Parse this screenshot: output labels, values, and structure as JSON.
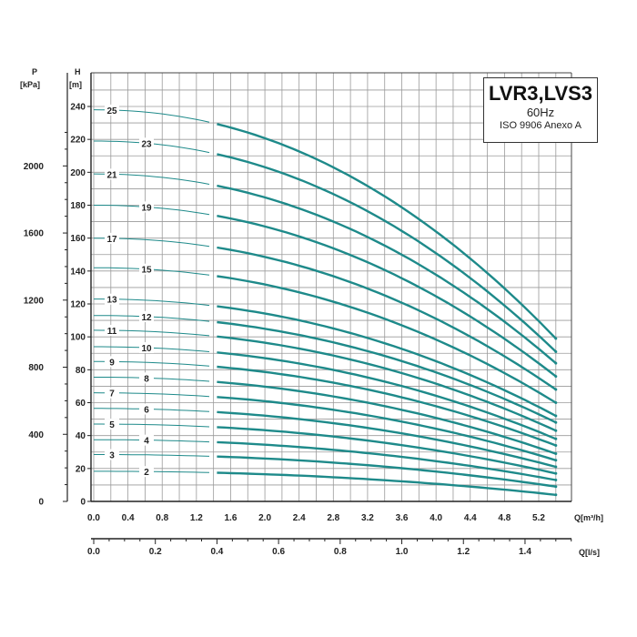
{
  "chart_data": {
    "type": "line",
    "title": "LVR3,LVS3",
    "subtitle": "60Hz",
    "standard": "ISO 9906 Anexo A",
    "xlabel": "Q[m³/h]",
    "x2label": "Q[l/s]",
    "ylabel": "H",
    "ylabel_unit": "[m]",
    "y2label": "P",
    "y2label_unit": "[kPa]",
    "xlim": [
      0,
      5.6
    ],
    "ylim": [
      0,
      250
    ],
    "x_ticks": [
      "0.0",
      "0.4",
      "0.8",
      "1.2",
      "1.6",
      "2.0",
      "2.4",
      "2.8",
      "3.2",
      "3.6",
      "4.0",
      "4.4",
      "4.8",
      "5.2"
    ],
    "x2_ticks": [
      "0.0",
      "0.2",
      "0.4",
      "0.6",
      "0.8",
      "1.0",
      "1.2",
      "1.4"
    ],
    "y_ticks": [
      "0",
      "20",
      "40",
      "60",
      "80",
      "100",
      "120",
      "140",
      "160",
      "180",
      "200",
      "220",
      "240"
    ],
    "y2_ticks": [
      "0",
      "400",
      "800",
      "1200",
      "1600",
      "2000"
    ],
    "grid": true,
    "series": [
      {
        "name": "2",
        "shutoff_head": 18.3,
        "end_head": 4
      },
      {
        "name": "3",
        "shutoff_head": 28.5,
        "end_head": 9
      },
      {
        "name": "4",
        "shutoff_head": 37.5,
        "end_head": 13
      },
      {
        "name": "5",
        "shutoff_head": 47,
        "end_head": 17
      },
      {
        "name": "6",
        "shutoff_head": 56.5,
        "end_head": 21
      },
      {
        "name": "7",
        "shutoff_head": 66,
        "end_head": 25
      },
      {
        "name": "8",
        "shutoff_head": 75.5,
        "end_head": 29
      },
      {
        "name": "9",
        "shutoff_head": 85,
        "end_head": 34
      },
      {
        "name": "10",
        "shutoff_head": 94,
        "end_head": 38
      },
      {
        "name": "11",
        "shutoff_head": 104,
        "end_head": 43
      },
      {
        "name": "12",
        "shutoff_head": 113,
        "end_head": 48
      },
      {
        "name": "13",
        "shutoff_head": 123,
        "end_head": 52
      },
      {
        "name": "15",
        "shutoff_head": 142,
        "end_head": 60
      },
      {
        "name": "17",
        "shutoff_head": 160,
        "end_head": 68
      },
      {
        "name": "19",
        "shutoff_head": 180,
        "end_head": 76
      },
      {
        "name": "21",
        "shutoff_head": 199,
        "end_head": 84
      },
      {
        "name": "23",
        "shutoff_head": 219,
        "end_head": 91
      },
      {
        "name": "25",
        "shutoff_head": 238,
        "end_head": 99
      }
    ],
    "flow_range": [
      0,
      5.4
    ],
    "line_color": "#1e8a8a",
    "grid_color": "#9a9a9a"
  }
}
